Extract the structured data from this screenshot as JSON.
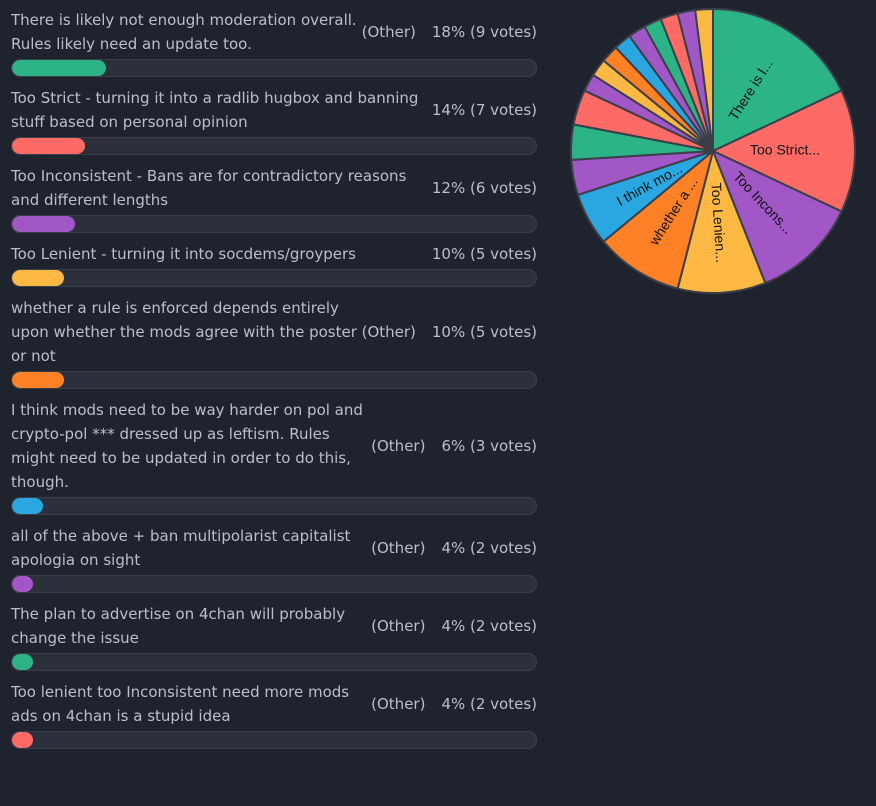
{
  "poll": {
    "options": [
      {
        "text": "There is likely not enough moderation overall. Rules likely need an update too.",
        "other": "(Other)",
        "stats": "18% (9 votes)",
        "percent": 18,
        "votes": 9,
        "color": "#2cb386"
      },
      {
        "text": "Too Strict - turning it into a radlib hugbox and banning stuff based on personal opinion",
        "other": "",
        "stats": "14% (7 votes)",
        "percent": 14,
        "votes": 7,
        "color": "#fe6b67"
      },
      {
        "text": "Too Inconsistent - Bans are for contradictory reasons and different lengths",
        "other": "",
        "stats": "12% (6 votes)",
        "percent": 12,
        "votes": 6,
        "color": "#a257c6"
      },
      {
        "text": "Too Lenient - turning it into socdems/groypers",
        "other": "",
        "stats": "10% (5 votes)",
        "percent": 10,
        "votes": 5,
        "color": "#feb945"
      },
      {
        "text": "whether a rule is enforced depends entirely upon whether the mods agree with the poster or not",
        "other": "(Other)",
        "stats": "10% (5 votes)",
        "percent": 10,
        "votes": 5,
        "color": "#fe8125"
      },
      {
        "text": "I think mods need to be way harder on pol and crypto-pol *** dressed up as leftism. Rules might need to be updated in order to do this, though.",
        "other": "(Other)",
        "stats": "6% (3 votes)",
        "percent": 6,
        "votes": 3,
        "color": "#2aa7e0"
      },
      {
        "text": "all of the above + ban multipolarist capitalist apologia on sight",
        "other": "(Other)",
        "stats": "4% (2 votes)",
        "percent": 4,
        "votes": 2,
        "color": "#a257c6"
      },
      {
        "text": "The plan to advertise on 4chan will probably change the issue",
        "other": "(Other)",
        "stats": "4% (2 votes)",
        "percent": 4,
        "votes": 2,
        "color": "#2cb386"
      },
      {
        "text": "Too lenient too Inconsistent need more mods ads on 4chan is a stupid idea",
        "other": "(Other)",
        "stats": "4% (2 votes)",
        "percent": 4,
        "votes": 2,
        "color": "#fe6b67"
      }
    ]
  },
  "chart_data": {
    "type": "pie",
    "total_votes": 50,
    "slices": [
      {
        "label": "There is l...",
        "value": 9,
        "color": "#2cb386"
      },
      {
        "label": "Too Strict...",
        "value": 7,
        "color": "#fe6b67"
      },
      {
        "label": "Too Incons...",
        "value": 6,
        "color": "#a257c6"
      },
      {
        "label": "Too Lenien...",
        "value": 5,
        "color": "#feb945"
      },
      {
        "label": "whether a ...",
        "value": 5,
        "color": "#fe8125"
      },
      {
        "label": "I think mo...",
        "value": 3,
        "color": "#2aa7e0"
      },
      {
        "label": "",
        "value": 2,
        "color": "#a257c6"
      },
      {
        "label": "",
        "value": 2,
        "color": "#2cb386"
      },
      {
        "label": "",
        "value": 2,
        "color": "#fe6b67"
      },
      {
        "label": "",
        "value": 1,
        "color": "#a257c6"
      },
      {
        "label": "",
        "value": 1,
        "color": "#feb945"
      },
      {
        "label": "",
        "value": 1,
        "color": "#fe8125"
      },
      {
        "label": "",
        "value": 1,
        "color": "#2aa7e0"
      },
      {
        "label": "",
        "value": 1,
        "color": "#a257c6"
      },
      {
        "label": "",
        "value": 1,
        "color": "#2cb386"
      },
      {
        "label": "",
        "value": 1,
        "color": "#fe6b67"
      },
      {
        "label": "",
        "value": 1,
        "color": "#a257c6"
      },
      {
        "label": "",
        "value": 1,
        "color": "#feb945"
      }
    ]
  }
}
